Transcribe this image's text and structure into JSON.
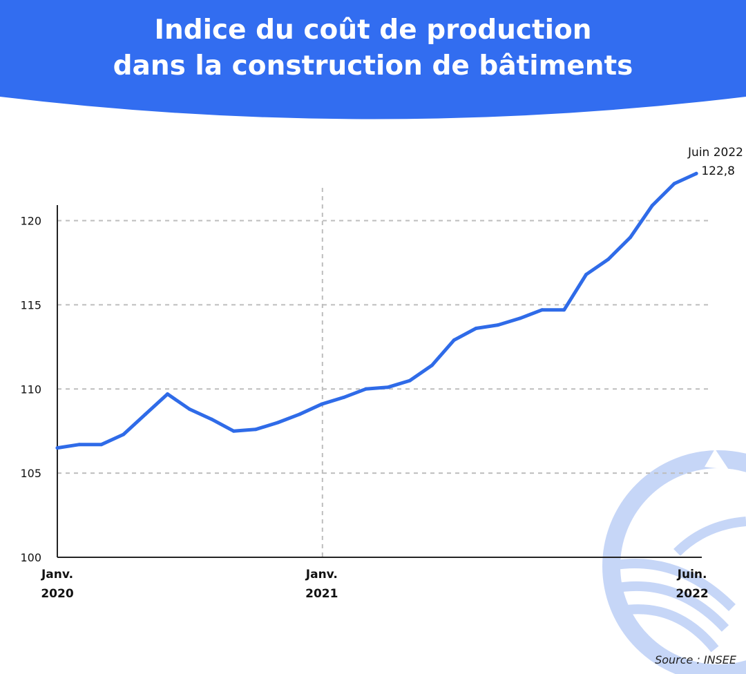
{
  "header": {
    "title_line1": "Indice du coût de production",
    "title_line2": "dans la construction de bâtiments",
    "band_color": "#326DF0"
  },
  "footer": {
    "source": "Source : INSEE"
  },
  "chart_data": {
    "type": "line",
    "title": "Indice du coût de production dans la construction de bâtiments",
    "xlabel": "",
    "ylabel": "",
    "ylim": [
      100,
      124
    ],
    "yticks": [
      100,
      105,
      110,
      115,
      120
    ],
    "grid": {
      "horizontal": true,
      "style": "dashed",
      "vertical_at": [
        "Janv. 2021"
      ]
    },
    "legend": "none",
    "line_color": "#2F6BE8",
    "x_ticks": [
      {
        "index": 0,
        "line1": "Janv.",
        "line2": "2020"
      },
      {
        "index": 12,
        "line1": "Janv.",
        "line2": "2021"
      },
      {
        "index": 29,
        "line1": "Juin.",
        "line2": "2022"
      }
    ],
    "series": [
      {
        "values": [
          106.5,
          106.7,
          106.7,
          107.3,
          108.5,
          109.7,
          108.8,
          108.2,
          107.5,
          107.6,
          108.0,
          108.5,
          109.1,
          109.5,
          110.0,
          110.1,
          110.5,
          111.4,
          112.9,
          113.6,
          113.8,
          114.2,
          114.7,
          114.7,
          116.8,
          117.7,
          119.0,
          120.9,
          122.2,
          122.8
        ]
      }
    ],
    "annotation": {
      "line1": "Juin 2022",
      "line2": "122,8",
      "index": 29
    }
  }
}
